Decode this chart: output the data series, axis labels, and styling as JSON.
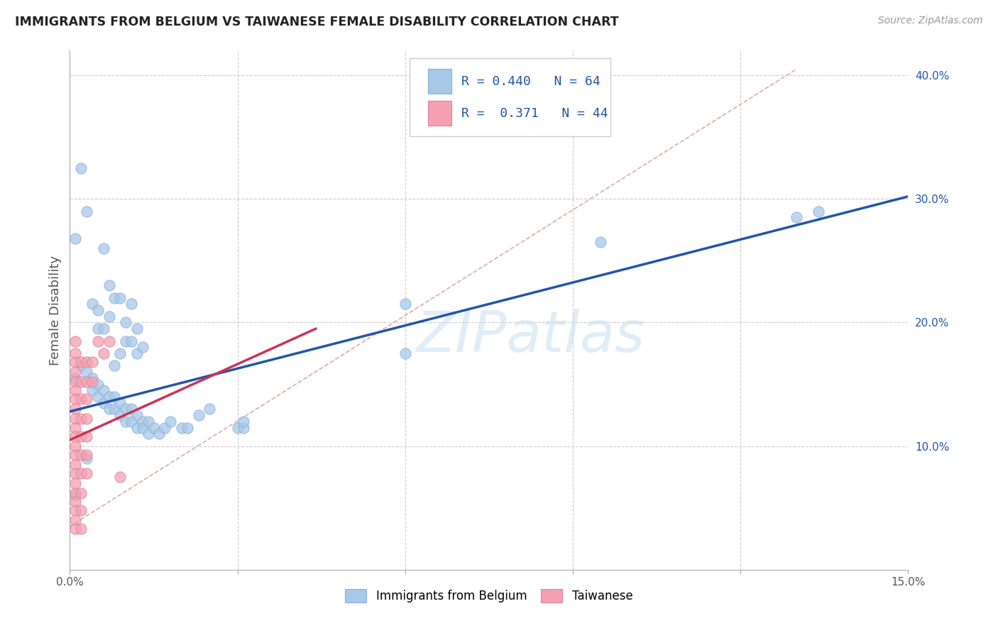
{
  "title": "IMMIGRANTS FROM BELGIUM VS TAIWANESE FEMALE DISABILITY CORRELATION CHART",
  "source": "Source: ZipAtlas.com",
  "ylabel": "Female Disability",
  "watermark": "ZIPatlas",
  "xlim": [
    0.0,
    0.15
  ],
  "ylim": [
    0.0,
    0.42
  ],
  "xticks": [
    0.0,
    0.03,
    0.06,
    0.09,
    0.12,
    0.15
  ],
  "xtick_labels": [
    "0.0%",
    "",
    "",
    "",
    "",
    "15.0%"
  ],
  "yticks_right": [
    0.1,
    0.2,
    0.3,
    0.4
  ],
  "ytick_labels_right": [
    "10.0%",
    "20.0%",
    "30.0%",
    "40.0%"
  ],
  "legend_R1": "0.440",
  "legend_N1": "64",
  "legend_R2": "0.371",
  "legend_N2": "44",
  "blue_color": "#a8c8e8",
  "pink_color": "#f4a0b0",
  "blue_line_color": "#2255aa",
  "pink_line_color": "#cc3355",
  "dashed_line_color": "#ddaaaa",
  "grid_color": "#cccccc",
  "blue_scatter": [
    [
      0.001,
      0.268
    ],
    [
      0.002,
      0.325
    ],
    [
      0.003,
      0.29
    ],
    [
      0.004,
      0.215
    ],
    [
      0.005,
      0.21
    ],
    [
      0.005,
      0.195
    ],
    [
      0.006,
      0.26
    ],
    [
      0.006,
      0.195
    ],
    [
      0.007,
      0.23
    ],
    [
      0.007,
      0.205
    ],
    [
      0.008,
      0.22
    ],
    [
      0.008,
      0.165
    ],
    [
      0.009,
      0.22
    ],
    [
      0.009,
      0.175
    ],
    [
      0.01,
      0.2
    ],
    [
      0.01,
      0.185
    ],
    [
      0.011,
      0.215
    ],
    [
      0.011,
      0.185
    ],
    [
      0.012,
      0.195
    ],
    [
      0.012,
      0.175
    ],
    [
      0.013,
      0.18
    ],
    [
      0.001,
      0.155
    ],
    [
      0.002,
      0.165
    ],
    [
      0.003,
      0.16
    ],
    [
      0.004,
      0.155
    ],
    [
      0.004,
      0.145
    ],
    [
      0.005,
      0.15
    ],
    [
      0.005,
      0.14
    ],
    [
      0.006,
      0.145
    ],
    [
      0.006,
      0.135
    ],
    [
      0.007,
      0.14
    ],
    [
      0.007,
      0.13
    ],
    [
      0.008,
      0.14
    ],
    [
      0.008,
      0.13
    ],
    [
      0.009,
      0.135
    ],
    [
      0.009,
      0.125
    ],
    [
      0.01,
      0.13
    ],
    [
      0.01,
      0.12
    ],
    [
      0.011,
      0.13
    ],
    [
      0.011,
      0.12
    ],
    [
      0.012,
      0.125
    ],
    [
      0.012,
      0.115
    ],
    [
      0.013,
      0.12
    ],
    [
      0.013,
      0.115
    ],
    [
      0.014,
      0.12
    ],
    [
      0.014,
      0.11
    ],
    [
      0.015,
      0.115
    ],
    [
      0.016,
      0.11
    ],
    [
      0.017,
      0.115
    ],
    [
      0.018,
      0.12
    ],
    [
      0.02,
      0.115
    ],
    [
      0.021,
      0.115
    ],
    [
      0.023,
      0.125
    ],
    [
      0.025,
      0.13
    ],
    [
      0.03,
      0.115
    ],
    [
      0.031,
      0.115
    ],
    [
      0.031,
      0.12
    ],
    [
      0.06,
      0.175
    ],
    [
      0.06,
      0.215
    ],
    [
      0.095,
      0.265
    ],
    [
      0.13,
      0.285
    ],
    [
      0.134,
      0.29
    ],
    [
      0.001,
      0.06
    ],
    [
      0.003,
      0.09
    ]
  ],
  "pink_scatter": [
    [
      0.001,
      0.185
    ],
    [
      0.001,
      0.175
    ],
    [
      0.001,
      0.168
    ],
    [
      0.001,
      0.16
    ],
    [
      0.001,
      0.152
    ],
    [
      0.001,
      0.145
    ],
    [
      0.001,
      0.138
    ],
    [
      0.001,
      0.13
    ],
    [
      0.001,
      0.122
    ],
    [
      0.001,
      0.115
    ],
    [
      0.001,
      0.108
    ],
    [
      0.001,
      0.1
    ],
    [
      0.001,
      0.093
    ],
    [
      0.001,
      0.085
    ],
    [
      0.001,
      0.078
    ],
    [
      0.001,
      0.07
    ],
    [
      0.001,
      0.062
    ],
    [
      0.001,
      0.055
    ],
    [
      0.001,
      0.048
    ],
    [
      0.001,
      0.04
    ],
    [
      0.001,
      0.033
    ],
    [
      0.002,
      0.168
    ],
    [
      0.002,
      0.152
    ],
    [
      0.002,
      0.138
    ],
    [
      0.002,
      0.122
    ],
    [
      0.002,
      0.108
    ],
    [
      0.002,
      0.093
    ],
    [
      0.002,
      0.078
    ],
    [
      0.002,
      0.062
    ],
    [
      0.002,
      0.048
    ],
    [
      0.002,
      0.033
    ],
    [
      0.003,
      0.168
    ],
    [
      0.003,
      0.152
    ],
    [
      0.003,
      0.138
    ],
    [
      0.003,
      0.122
    ],
    [
      0.003,
      0.108
    ],
    [
      0.003,
      0.093
    ],
    [
      0.003,
      0.078
    ],
    [
      0.004,
      0.168
    ],
    [
      0.004,
      0.152
    ],
    [
      0.005,
      0.185
    ],
    [
      0.006,
      0.175
    ],
    [
      0.007,
      0.185
    ],
    [
      0.009,
      0.075
    ]
  ],
  "blue_trendline": [
    [
      0.0,
      0.128
    ],
    [
      0.15,
      0.302
    ]
  ],
  "pink_trendline": [
    [
      0.0,
      0.105
    ],
    [
      0.044,
      0.195
    ]
  ],
  "dashed_trendline": [
    [
      0.0,
      0.035
    ],
    [
      0.13,
      0.405
    ]
  ]
}
